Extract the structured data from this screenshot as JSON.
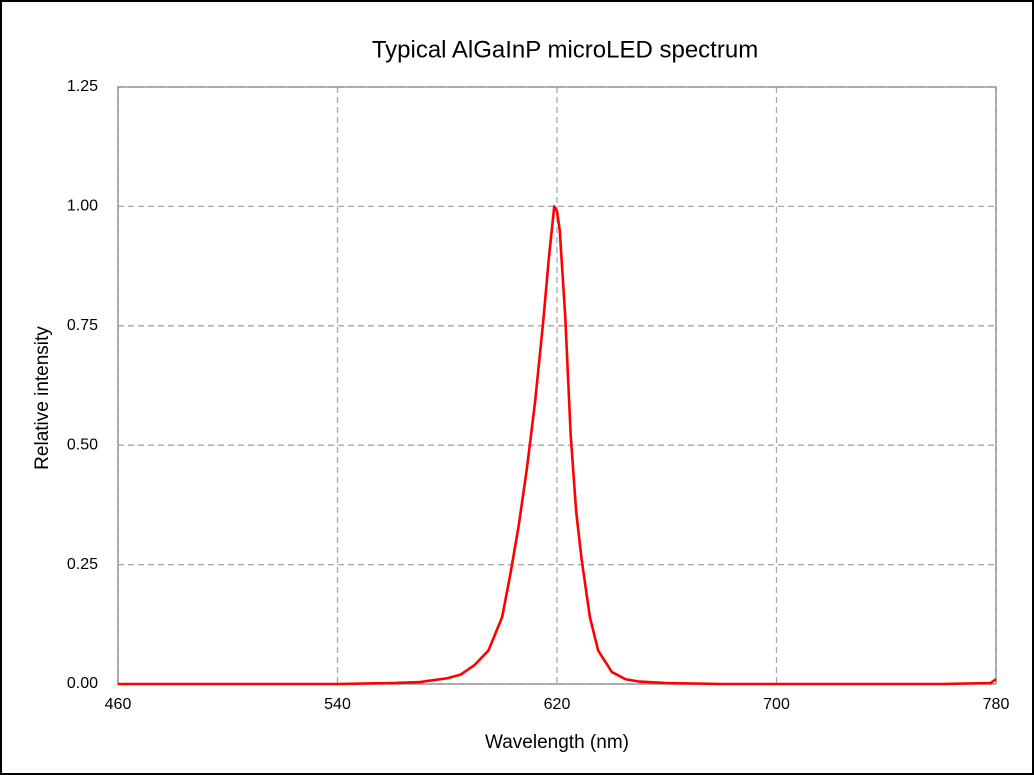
{
  "chart_data": {
    "type": "line",
    "title": "Typical AlGaInP microLED spectrum",
    "x_label": "Wavelength (nm)",
    "y_label": "Relative intensity",
    "x": [
      460,
      480,
      500,
      520,
      540,
      560,
      570,
      580,
      585,
      590,
      595,
      600,
      603,
      606,
      609,
      612,
      615,
      617,
      619,
      620,
      621,
      623,
      625,
      627,
      629,
      632,
      635,
      640,
      645,
      650,
      660,
      680,
      700,
      720,
      740,
      760,
      778,
      780
    ],
    "values": [
      0,
      0,
      0,
      0,
      0,
      0.002,
      0.004,
      0.012,
      0.02,
      0.04,
      0.07,
      0.14,
      0.23,
      0.33,
      0.45,
      0.59,
      0.76,
      0.89,
      1.0,
      0.99,
      0.95,
      0.77,
      0.52,
      0.36,
      0.26,
      0.14,
      0.07,
      0.025,
      0.01,
      0.005,
      0.002,
      0,
      0,
      0,
      0,
      0,
      0.002,
      0.01
    ],
    "color": "#ff0000",
    "xlim": [
      460,
      780
    ],
    "xticks": [
      460,
      540,
      620,
      700,
      780
    ],
    "ylim": [
      0,
      1.25
    ],
    "yticks": [
      {
        "value": 0,
        "label": "0.00"
      },
      {
        "value": 0.25,
        "label": "0.25"
      },
      {
        "value": 0.5,
        "label": "0.50"
      },
      {
        "value": 0.75,
        "label": "0.75"
      },
      {
        "value": 1,
        "label": "1.00"
      },
      {
        "value": 1.25,
        "label": "1.25"
      }
    ],
    "grid": true
  }
}
